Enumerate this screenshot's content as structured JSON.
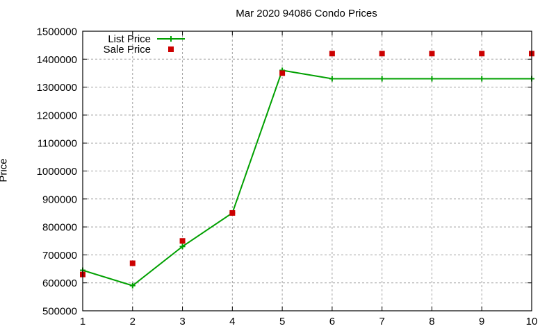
{
  "chart_data": {
    "type": "line",
    "title": "Mar 2020 94086 Condo Prices",
    "xlabel": "",
    "ylabel": "Price",
    "x": [
      1,
      2,
      3,
      4,
      5,
      6,
      7,
      8,
      9,
      10
    ],
    "xlim": [
      1,
      10
    ],
    "ylim": [
      500000,
      1500000
    ],
    "xticks": [
      "1",
      "2",
      "3",
      "4",
      "5",
      "6",
      "7",
      "8",
      "9",
      "10"
    ],
    "yticks": [
      "500000",
      "600000",
      "700000",
      "800000",
      "900000",
      "1000000",
      "1100000",
      "1200000",
      "1300000",
      "1400000",
      "1500000"
    ],
    "grid": true,
    "legend_position": "top-left",
    "series": [
      {
        "name": "List Price",
        "style": "linespoints",
        "marker": "plus",
        "color": "#00a000",
        "values": [
          645000,
          590000,
          730000,
          850000,
          1360000,
          1330000,
          1330000,
          1330000,
          1330000,
          1330000
        ]
      },
      {
        "name": "Sale Price",
        "style": "points",
        "marker": "square",
        "color": "#cc0000",
        "values": [
          630000,
          670000,
          750000,
          850000,
          1350000,
          1420000,
          1420000,
          1420000,
          1420000,
          1420000
        ]
      }
    ]
  }
}
